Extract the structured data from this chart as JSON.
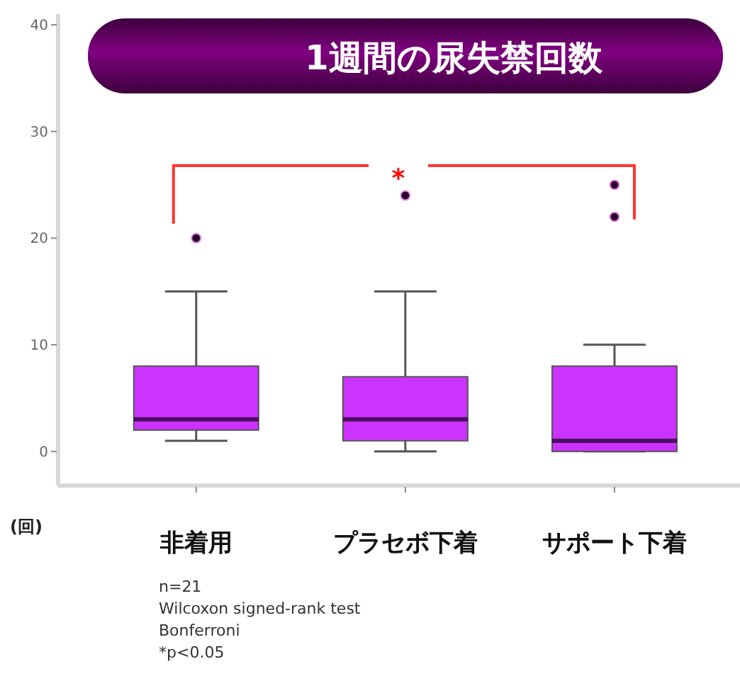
{
  "chart_data": {
    "type": "box",
    "title": "1週間の尿失禁回数",
    "ylabel": "(回)",
    "categories": [
      "非着用",
      "プラセボ下着",
      "サポート下着"
    ],
    "color": "#cc33ff",
    "boxes": [
      {
        "low": 1,
        "q1": 2,
        "median": 3,
        "q3": 8,
        "high": 15,
        "outliers": [
          20
        ]
      },
      {
        "low": 0,
        "q1": 1,
        "median": 3,
        "q3": 7,
        "high": 15,
        "outliers": [
          24
        ]
      },
      {
        "low": 0,
        "q1": 0,
        "median": 1,
        "q3": 8,
        "high": 10,
        "outliers": [
          25,
          22
        ]
      }
    ],
    "ylim": [
      -3.2,
      41
    ],
    "yticks": [
      0,
      10,
      20,
      30,
      40
    ],
    "annotations": [
      "*",
      "n=21",
      "Wilcoxon signed-rank test",
      "Bonferroni",
      "*p<0.05"
    ]
  }
}
